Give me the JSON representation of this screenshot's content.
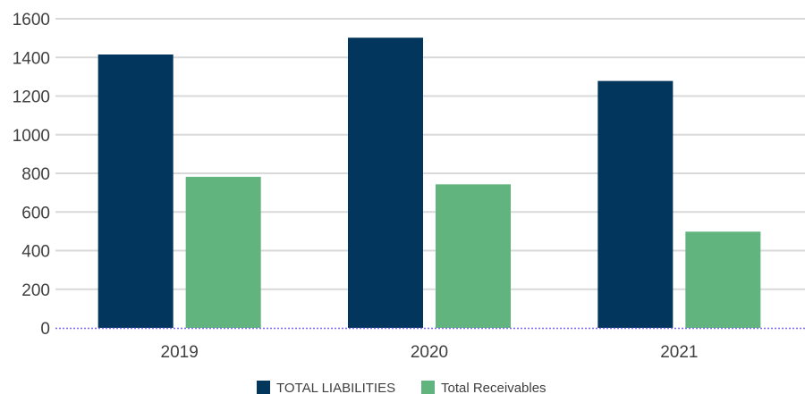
{
  "chart_data": {
    "type": "bar",
    "categories": [
      "2019",
      "2020",
      "2021"
    ],
    "series": [
      {
        "name": "TOTAL LIABILITIES",
        "color": "#02365c",
        "values": [
          1415,
          1502,
          1278
        ]
      },
      {
        "name": "Total Receivables",
        "color": "#61b47d",
        "values": [
          782,
          743,
          498
        ]
      }
    ],
    "yticks": [
      "0",
      "200",
      "400",
      "600",
      "800",
      "1000",
      "1200",
      "1400",
      "1600"
    ],
    "ylim": [
      0,
      1600
    ],
    "grid": true,
    "legend_position": "bottom",
    "baseline_color": "#7b68ee"
  }
}
